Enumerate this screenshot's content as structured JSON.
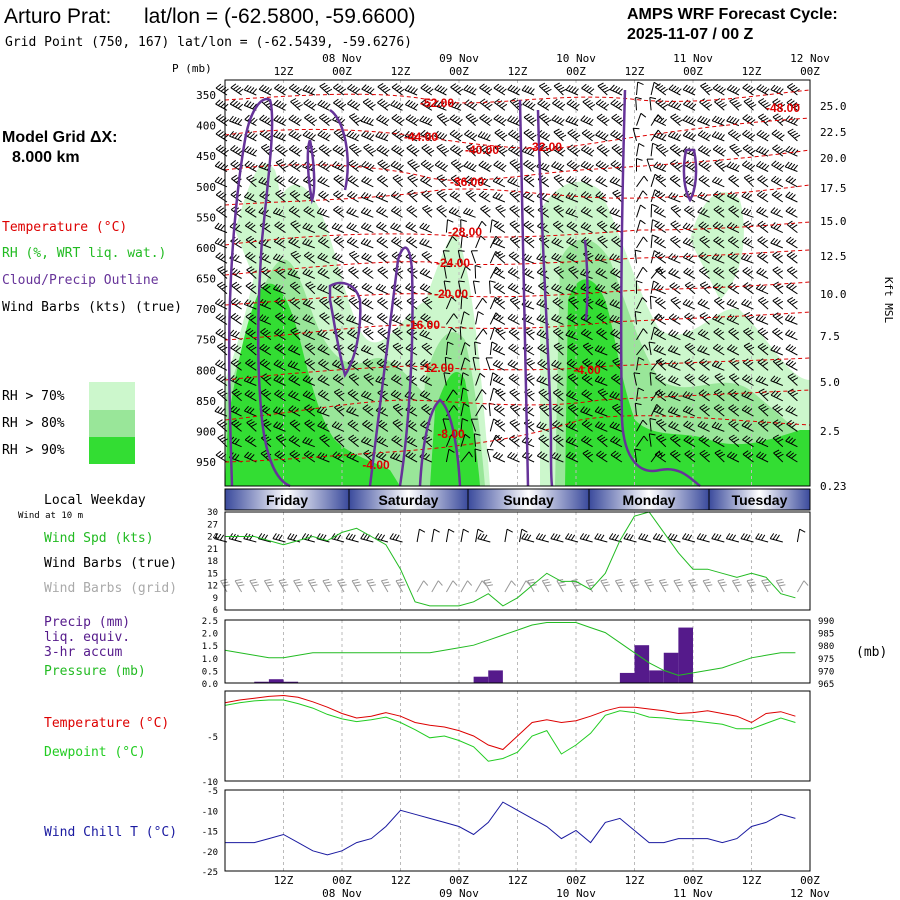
{
  "header": {
    "station": "Arturo Prat:",
    "latlon": "lat/lon = (-62.5800, -59.6600)",
    "grid_point": "Grid Point (750, 167) lat/lon = (-62.5439, -59.6276)",
    "cycle_title": "AMPS WRF Forecast Cycle:",
    "cycle_value": "2025-11-07 / 00  Z"
  },
  "legend": {
    "model_grid_title": "Model Grid ΔX:",
    "model_grid_value": "8.000 km",
    "temperature": "Temperature (°C)",
    "rh": "RH (%, WRT liq. wat.)",
    "cloud": "Cloud/Precip Outline",
    "wind": "Wind Barbs (kts) (true)",
    "rh70": "RH > 70%",
    "rh80": "RH > 80%",
    "rh90": "RH > 90%",
    "local_weekday": "Local Weekday",
    "wind_at": "Wind at 10 m"
  },
  "colors": {
    "rh70": "#ccf7cc",
    "rh80": "#99e699",
    "rh90": "#33dd33",
    "temp": "#dd0000",
    "cloud": "#663399",
    "wind_spd": "#22bb22",
    "precip": "#551a8b",
    "pressure": "#22bb22",
    "temperature": "#dd0000",
    "dewpoint": "#22cc22",
    "windchill": "#1a1aa0"
  },
  "time_axis": {
    "top_labels": [
      "12Z",
      "00Z",
      "12Z",
      "00Z",
      "12Z",
      "00Z",
      "12Z",
      "00Z",
      "12Z",
      "00Z"
    ],
    "date_labels": [
      "08 Nov",
      "09 Nov",
      "10 Nov",
      "11 Nov",
      "12 Nov"
    ]
  },
  "sounding": {
    "p_label": "P (mb)",
    "pressure_levels": [
      350,
      400,
      450,
      500,
      550,
      600,
      650,
      700,
      750,
      800,
      850,
      900,
      950
    ],
    "kft_levels": [
      "25.0",
      "22.5",
      "20.0",
      "17.5",
      "15.0",
      "12.5",
      "10.0",
      "7.5",
      "5.0",
      "2.5",
      "0.23"
    ],
    "kft_label": "Kft MSL",
    "isotherm_labels": [
      "-52.00",
      "-48.00",
      "-44.00",
      "-40.00",
      "-32.00",
      "-36.00",
      "-28.00",
      "-24.00",
      "-20.00",
      "-16.00",
      "-12.00",
      "-4.00",
      "-8.00",
      "-4.00"
    ]
  },
  "weekdays": [
    "Friday",
    "Saturday",
    "Sunday",
    "Monday",
    "Tuesday"
  ],
  "wind_panel": {
    "label_spd": "Wind Spd (kts)",
    "label_true": "Wind Barbs (true)",
    "label_grid": "Wind Barbs (grid)",
    "yticks": [
      30,
      27,
      24,
      21,
      18,
      15,
      12,
      9,
      6
    ]
  },
  "precip_panel": {
    "label1": "Precip (mm)",
    "label2": "liq. equiv.",
    "label3": "3-hr accum",
    "label4": "Pressure (mb)",
    "left_ticks": [
      "2.5",
      "2.0",
      "1.5",
      "1.0",
      "0.5",
      "0.0"
    ],
    "right_ticks": [
      "990",
      "985",
      "980",
      "975",
      "970",
      "965"
    ],
    "unit": "(mb)"
  },
  "temp_panel": {
    "label_t": "Temperature (°C)",
    "label_td": "Dewpoint (°C)",
    "yticks": [
      "-5",
      "-10"
    ]
  },
  "chill_panel": {
    "label": "Wind Chill T (°C)",
    "yticks": [
      "-5",
      "-10",
      "-15",
      "-20",
      "-25"
    ]
  },
  "chart_data": [
    {
      "type": "line",
      "title": "Wind Speed 10 m",
      "ylabel": "Wind Spd (kts)",
      "ylim": [
        6,
        30
      ],
      "x_hours": [
        0,
        3,
        6,
        9,
        12,
        15,
        18,
        21,
        24,
        27,
        30,
        33,
        36,
        39,
        42,
        45,
        48,
        51,
        54,
        57,
        60,
        63,
        66,
        69,
        72,
        75,
        78,
        81,
        84,
        87,
        90,
        93,
        96,
        99,
        102,
        105,
        108,
        111,
        114,
        117
      ],
      "values": [
        24,
        24,
        24,
        23,
        22,
        23,
        24,
        23,
        25,
        26,
        24,
        22,
        16,
        8,
        7,
        7,
        7,
        8,
        10,
        7,
        9,
        12,
        15,
        13,
        13,
        11,
        15,
        23,
        29,
        30,
        25,
        20,
        16,
        16,
        15,
        14,
        15,
        14,
        10,
        9
      ]
    },
    {
      "type": "bar",
      "title": "Precip 3-hr accum (mm)",
      "ylim": [
        0,
        2.5
      ],
      "x_hours": [
        0,
        3,
        6,
        9,
        12,
        15,
        18,
        21,
        24,
        27,
        30,
        33,
        36,
        39,
        42,
        45,
        48,
        51,
        54,
        57,
        60,
        63,
        66,
        69,
        72,
        75,
        78,
        81,
        84,
        87,
        90,
        93,
        96,
        99,
        102,
        105,
        108,
        111,
        114,
        117
      ],
      "values": [
        0,
        0,
        0.05,
        0.15,
        0.05,
        0,
        0,
        0,
        0,
        0,
        0,
        0,
        0,
        0,
        0,
        0.02,
        0.02,
        0.25,
        0.5,
        0,
        0,
        0,
        0,
        0,
        0,
        0,
        0,
        0.4,
        1.5,
        0.5,
        1.2,
        2.2,
        0,
        0,
        0,
        0,
        0,
        0,
        0,
        0
      ]
    },
    {
      "type": "line",
      "title": "Pressure (mb)",
      "ylim": [
        965,
        990
      ],
      "x_hours": [
        0,
        3,
        6,
        9,
        12,
        15,
        18,
        21,
        24,
        27,
        30,
        33,
        36,
        39,
        42,
        45,
        48,
        51,
        54,
        57,
        60,
        63,
        66,
        69,
        72,
        75,
        78,
        81,
        84,
        87,
        90,
        93,
        96,
        99,
        102,
        105,
        108,
        111,
        114,
        117
      ],
      "values": [
        978,
        977,
        976,
        975,
        975,
        976,
        977,
        977,
        977,
        977,
        977,
        977,
        977,
        977,
        977,
        978,
        979,
        980,
        982,
        984,
        986,
        988,
        989,
        989,
        989,
        987,
        985,
        981,
        977,
        973,
        970,
        968,
        969,
        970,
        971,
        973,
        975,
        976,
        977,
        977
      ]
    },
    {
      "type": "line",
      "title": "Temperature and Dewpoint (°C)",
      "ylim": [
        -10,
        0
      ],
      "x_hours": [
        0,
        3,
        6,
        9,
        12,
        15,
        18,
        21,
        24,
        27,
        30,
        33,
        36,
        39,
        42,
        45,
        48,
        51,
        54,
        57,
        60,
        63,
        66,
        69,
        72,
        75,
        78,
        81,
        84,
        87,
        90,
        93,
        96,
        99,
        102,
        105,
        108,
        111,
        114,
        117
      ],
      "series": [
        {
          "name": "Temperature",
          "values": [
            -1.3,
            -1.0,
            -0.8,
            -0.6,
            -0.5,
            -0.7,
            -1.2,
            -1.8,
            -2.5,
            -3.0,
            -2.8,
            -2.4,
            -2.8,
            -3.5,
            -3.8,
            -4.0,
            -4.4,
            -5.0,
            -6.0,
            -6.5,
            -5.0,
            -3.5,
            -3.2,
            -3.5,
            -3.3,
            -2.8,
            -2.2,
            -1.8,
            -1.8,
            -2.0,
            -2.2,
            -2.5,
            -2.4,
            -2.2,
            -2.5,
            -2.8,
            -3.5,
            -2.5,
            -2.3,
            -2.8
          ]
        },
        {
          "name": "Dewpoint",
          "values": [
            -1.6,
            -1.3,
            -1.1,
            -1.0,
            -1.0,
            -1.4,
            -1.9,
            -2.6,
            -3.1,
            -3.4,
            -3.2,
            -2.9,
            -3.5,
            -4.3,
            -5.2,
            -5.0,
            -5.5,
            -6.2,
            -7.8,
            -7.5,
            -6.8,
            -5.0,
            -4.4,
            -7.0,
            -6.0,
            -4.7,
            -2.7,
            -2.2,
            -2.4,
            -2.9,
            -3.0,
            -3.2,
            -3.3,
            -3.5,
            -3.7,
            -4.2,
            -4.2,
            -3.6,
            -3.0,
            -3.5
          ]
        }
      ]
    },
    {
      "type": "line",
      "title": "Wind Chill T (°C)",
      "ylim": [
        -25,
        -5
      ],
      "x_hours": [
        0,
        3,
        6,
        9,
        12,
        15,
        18,
        21,
        24,
        27,
        30,
        33,
        36,
        39,
        42,
        45,
        48,
        51,
        54,
        57,
        60,
        63,
        66,
        69,
        72,
        75,
        78,
        81,
        84,
        87,
        90,
        93,
        96,
        99,
        102,
        105,
        108,
        111,
        114,
        117
      ],
      "values": [
        -18,
        -18,
        -18,
        -17,
        -16,
        -18,
        -20,
        -21,
        -20,
        -18,
        -17,
        -14,
        -10,
        -11,
        -12,
        -13,
        -14,
        -16,
        -13,
        -8,
        -10,
        -12,
        -14,
        -17,
        -15,
        -18,
        -13,
        -12,
        -15,
        -18,
        -18,
        -17,
        -17,
        -17,
        -18,
        -17,
        -14,
        -13,
        -11,
        -12
      ]
    }
  ]
}
